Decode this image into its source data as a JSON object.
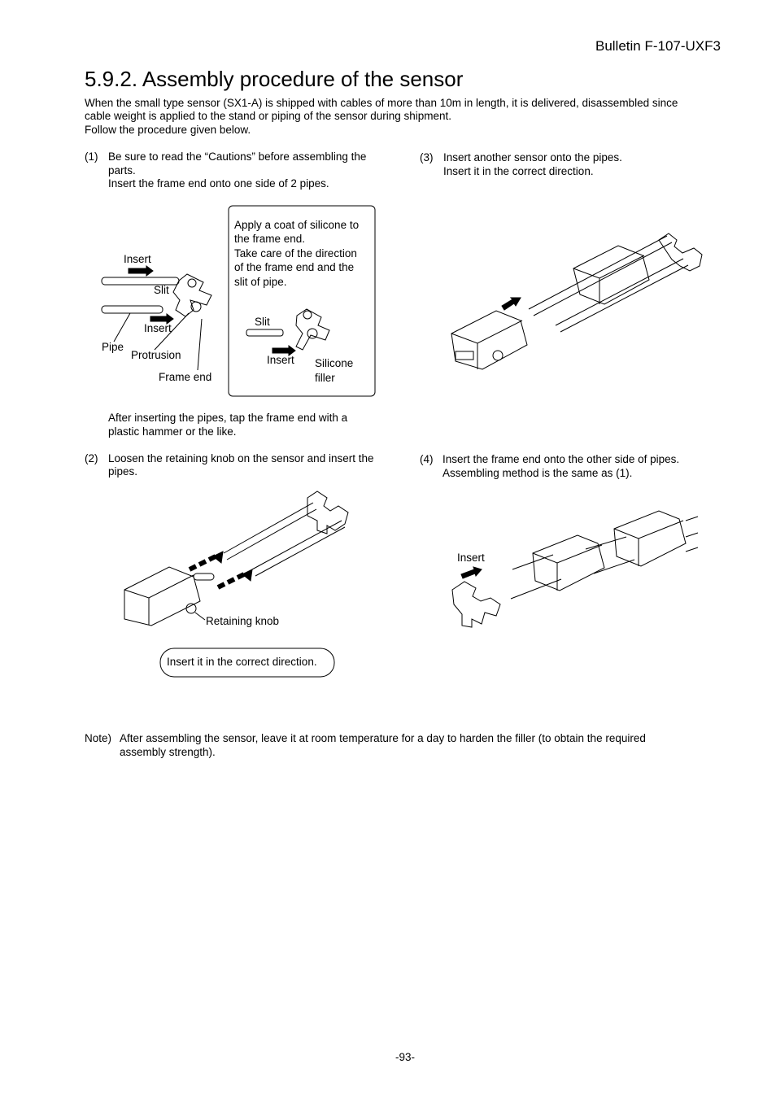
{
  "header": {
    "bulletin": "Bulletin F-107-UXF3"
  },
  "title": "5.9.2. Assembly procedure of the sensor",
  "intro": {
    "lines": [
      "When the small type sensor (SX1-A) is shipped with cables of more than 10m in length, it is delivered, disassembled since",
      "cable weight is applied to the stand or piping of the sensor during shipment.",
      "Follow the procedure given below."
    ]
  },
  "steps": [
    {
      "number": "(1)",
      "lines": [
        "Be sure to read the “Cautions” before assembling the",
        "parts.",
        "Insert the frame end onto one side of 2 pipes."
      ],
      "figure": {
        "labels": [
          "Insert",
          "Slit",
          "Insert",
          "Pipe",
          "Protrusion",
          "Frame end"
        ],
        "callout": {
          "lines": [
            "Apply a coat of silicone to",
            "the frame end.",
            "Take care of the direction",
            "of the frame end and the",
            "slit of pipe."
          ],
          "labels": [
            "Slit",
            "Insert",
            "Silicone",
            "filler"
          ]
        }
      },
      "after": [
        "After inserting the pipes, tap the frame end with a",
        "plastic hammer or the like."
      ]
    },
    {
      "number": "(2)",
      "lines": [
        "Loosen the retaining knob on the sensor and insert the",
        "pipes."
      ],
      "figure": {
        "labels": [
          "Retaining knob"
        ],
        "note": "Insert it in the correct direction."
      }
    },
    {
      "number": "(3)",
      "lines": [
        "Insert another sensor onto the pipes.",
        "Insert it in the correct direction."
      ]
    },
    {
      "number": "(4)",
      "lines": [
        "Insert the frame end onto the other side of pipes.",
        "Assembling method is the same as (1)."
      ],
      "figure": {
        "labels": [
          "Insert"
        ]
      }
    }
  ],
  "note": {
    "prefix": "Note)",
    "lines": [
      "After assembling the sensor, leave it at room temperature for a day to harden the filler (to obtain the required",
      "assembly strength)."
    ]
  },
  "footer": {
    "page": "-93-"
  }
}
